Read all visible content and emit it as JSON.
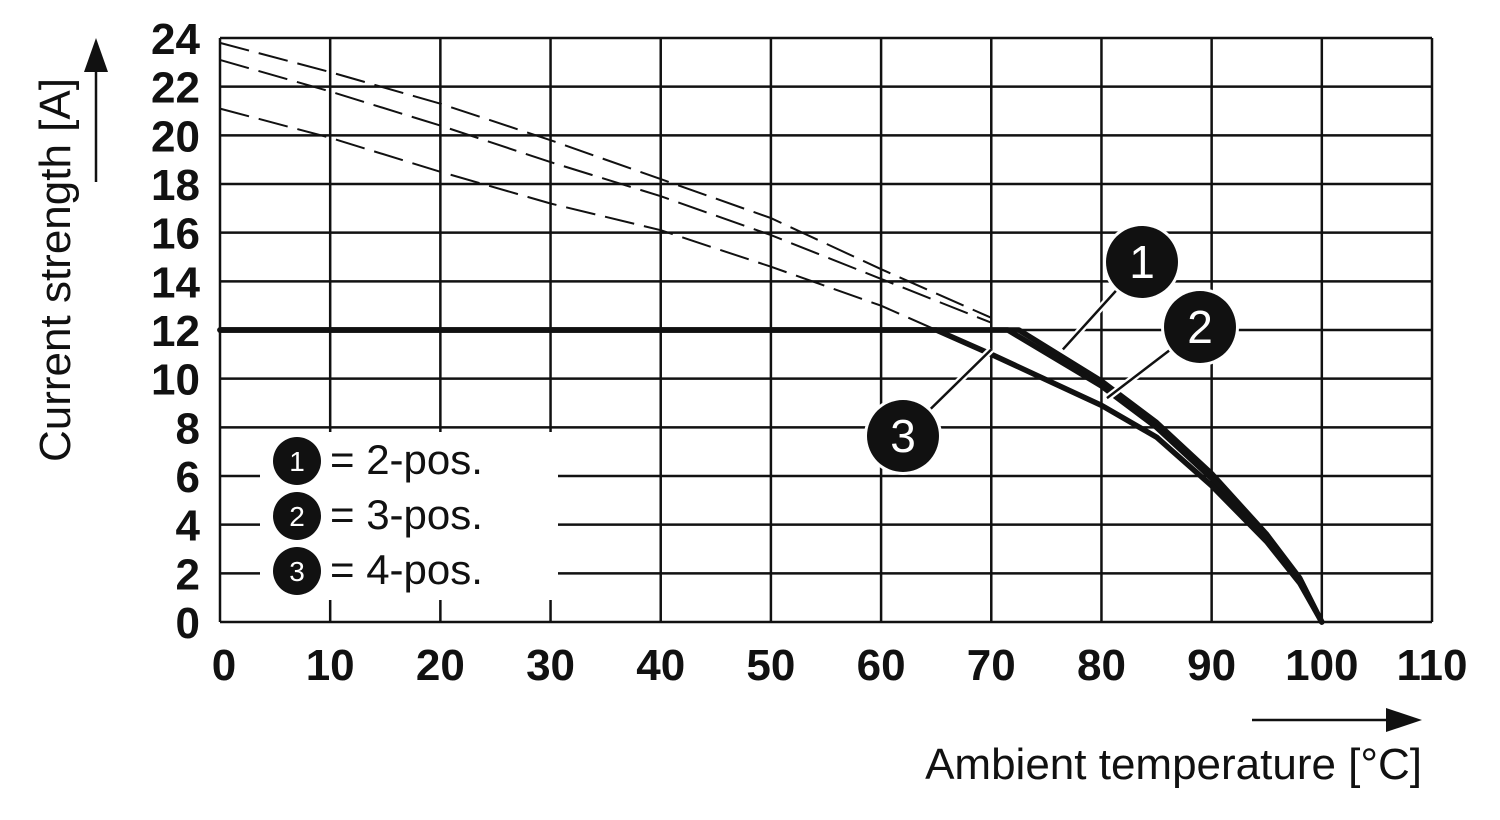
{
  "chart_data": {
    "type": "line",
    "xlabel": "Ambient temperature [°C]",
    "ylabel": "Current strength [A]",
    "xlim": [
      0,
      110
    ],
    "ylim": [
      0,
      24
    ],
    "x_ticks": [
      "0",
      "10",
      "20",
      "30",
      "40",
      "50",
      "60",
      "70",
      "80",
      "90",
      "100",
      "110"
    ],
    "y_ticks": [
      "0",
      "2",
      "4",
      "6",
      "8",
      "10",
      "12",
      "14",
      "16",
      "18",
      "20",
      "22",
      "24"
    ],
    "grid": true,
    "legend_position": "bottom-left",
    "legend": [
      {
        "marker": "1",
        "label": "= 2-pos."
      },
      {
        "marker": "2",
        "label": "= 3-pos."
      },
      {
        "marker": "3",
        "label": "= 4-pos."
      }
    ],
    "series": [
      {
        "marker": "1",
        "x": [
          0,
          72.5,
          80,
          85,
          90,
          95,
          98,
          100
        ],
        "y": [
          12,
          12,
          9.9,
          8.2,
          6.1,
          3.6,
          1.8,
          0
        ],
        "dashed_x": [
          0,
          10,
          20,
          30,
          40,
          50,
          60,
          70
        ],
        "dashed_y": [
          23.8,
          22.6,
          21.3,
          19.8,
          18.2,
          16.6,
          14.5,
          12.5
        ]
      },
      {
        "marker": "2",
        "x": [
          0,
          71.5,
          80,
          85,
          90,
          95,
          98,
          100
        ],
        "y": [
          12,
          12,
          9.7,
          8.0,
          5.9,
          3.5,
          1.7,
          0
        ],
        "dashed_x": [
          0,
          10,
          20,
          30,
          40,
          50,
          60,
          70
        ],
        "dashed_y": [
          23.1,
          21.8,
          20.4,
          18.9,
          17.5,
          15.9,
          14.1,
          12.3
        ]
      },
      {
        "marker": "3",
        "x": [
          0,
          65,
          70,
          80,
          85,
          90,
          95,
          98,
          100
        ],
        "y": [
          12,
          12,
          11.0,
          8.9,
          7.6,
          5.6,
          3.3,
          1.6,
          0
        ],
        "dashed_x": [
          0,
          10,
          20,
          30,
          40,
          50,
          60,
          65
        ],
        "dashed_y": [
          21.1,
          19.9,
          18.5,
          17.2,
          16.1,
          14.6,
          13.0,
          12.0
        ]
      }
    ],
    "callouts": [
      {
        "marker": "1",
        "x": 76.5,
        "y": 11.2
      },
      {
        "marker": "2",
        "x": 80.5,
        "y": 9.2
      },
      {
        "marker": "3",
        "x": 70,
        "y": 11.2
      }
    ]
  }
}
